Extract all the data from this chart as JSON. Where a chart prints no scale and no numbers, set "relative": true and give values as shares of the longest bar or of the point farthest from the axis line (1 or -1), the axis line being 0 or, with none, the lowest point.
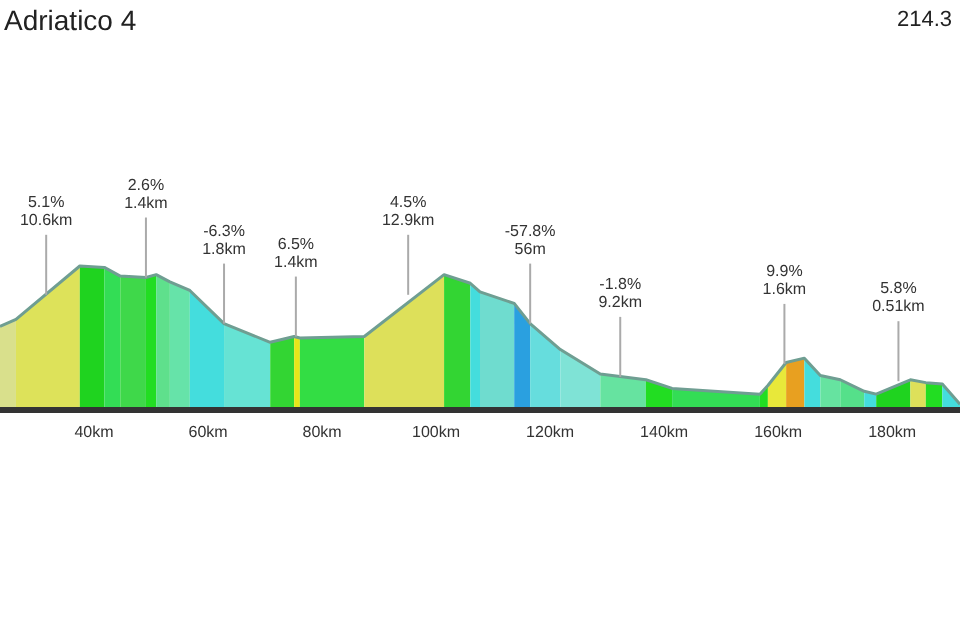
{
  "chart_data": {
    "type": "area",
    "title": "Adriatico 4",
    "subtitle": "214.3",
    "relative": true,
    "series": [
      {
        "x": [
          23.5,
          26.3
        ],
        "values": [
          0.58,
          0.63
        ],
        "color": "#d9e08c"
      },
      {
        "x": [
          26.3,
          37.5
        ],
        "values": [
          0.63,
          1
        ],
        "color": "#dde25a"
      },
      {
        "x": [
          37.5,
          41.8
        ],
        "values": [
          1,
          0.99
        ],
        "color": "#1fd31f"
      },
      {
        "x": [
          41.8,
          44.6
        ],
        "values": [
          0.99,
          0.93
        ],
        "color": "#33dd55"
      },
      {
        "x": [
          44.6,
          49.1
        ],
        "values": [
          0.93,
          0.92
        ],
        "color": "#3fd84a"
      },
      {
        "x": [
          49.1,
          50.9
        ],
        "values": [
          0.92,
          0.94
        ],
        "color": "#22dd22"
      },
      {
        "x": [
          50.9,
          53.3
        ],
        "values": [
          0.94,
          0.89
        ],
        "color": "#5fe08c"
      },
      {
        "x": [
          53.3,
          56.8
        ],
        "values": [
          0.89,
          0.83
        ],
        "color": "#66e3a9"
      },
      {
        "x": [
          56.8,
          62.8
        ],
        "values": [
          0.83,
          0.6
        ],
        "color": "#44dddd"
      },
      {
        "x": [
          62.8,
          70.9
        ],
        "values": [
          0.6,
          0.47
        ],
        "color": "#66e3d4"
      },
      {
        "x": [
          70.9,
          75.1
        ],
        "values": [
          0.47,
          0.51
        ],
        "color": "#33d533"
      },
      {
        "x": [
          75.1,
          76.1
        ],
        "values": [
          0.51,
          0.5
        ],
        "color": "#e6e61a"
      },
      {
        "x": [
          76.1,
          87.4
        ],
        "values": [
          0.5,
          0.51
        ],
        "color": "#33dd44"
      },
      {
        "x": [
          87.4,
          101.4
        ],
        "values": [
          0.51,
          0.94
        ],
        "color": "#dde05a"
      },
      {
        "x": [
          101.4,
          106.0
        ],
        "values": [
          0.94,
          0.88
        ],
        "color": "#33d533"
      },
      {
        "x": [
          106.0,
          107.7
        ],
        "values": [
          0.88,
          0.82
        ],
        "color": "#44dddd"
      },
      {
        "x": [
          107.7,
          113.7
        ],
        "values": [
          0.82,
          0.74
        ],
        "color": "#6fdccf"
      },
      {
        "x": [
          113.7,
          116.5
        ],
        "values": [
          0.74,
          0.6
        ],
        "color": "#2aa0e0"
      },
      {
        "x": [
          116.5,
          121.8
        ],
        "values": [
          0.6,
          0.42
        ],
        "color": "#66dddd"
      },
      {
        "x": [
          121.8,
          128.8
        ],
        "values": [
          0.42,
          0.25
        ],
        "color": "#7fe3d6"
      },
      {
        "x": [
          128.8,
          136.8
        ],
        "values": [
          0.25,
          0.21
        ],
        "color": "#66e3a0"
      },
      {
        "x": [
          136.8,
          141.4
        ],
        "values": [
          0.21,
          0.15
        ],
        "color": "#22dd22"
      },
      {
        "x": [
          141.4,
          156.8
        ],
        "values": [
          0.15,
          0.11
        ],
        "color": "#33dd55"
      },
      {
        "x": [
          156.8,
          158.2
        ],
        "values": [
          0.11,
          0.17
        ],
        "color": "#22dd22"
      },
      {
        "x": [
          158.2,
          161.4
        ],
        "values": [
          0.17,
          0.33
        ],
        "color": "#e8e83a"
      },
      {
        "x": [
          161.4,
          164.6
        ],
        "values": [
          0.33,
          0.36
        ],
        "color": "#e8a020"
      },
      {
        "x": [
          164.6,
          167.4
        ],
        "values": [
          0.36,
          0.24
        ],
        "color": "#44dddd"
      },
      {
        "x": [
          167.4,
          170.9
        ],
        "values": [
          0.24,
          0.21
        ],
        "color": "#66e3a0"
      },
      {
        "x": [
          170.9,
          175.1
        ],
        "values": [
          0.21,
          0.13
        ],
        "color": "#55e08a"
      },
      {
        "x": [
          175.1,
          177.2
        ],
        "values": [
          0.13,
          0.11
        ],
        "color": "#44dddd"
      },
      {
        "x": [
          177.2,
          183.2
        ],
        "values": [
          0.11,
          0.21
        ],
        "color": "#1fd31f"
      },
      {
        "x": [
          183.2,
          185.9
        ],
        "values": [
          0.21,
          0.19
        ],
        "color": "#dde05a"
      },
      {
        "x": [
          185.9,
          188.8
        ],
        "values": [
          0.19,
          0.18
        ],
        "color": "#22dd22"
      },
      {
        "x": [
          188.8,
          191.9
        ],
        "values": [
          0.18,
          0.04
        ],
        "color": "#44dddd"
      },
      {
        "type": "line",
        "color": "#6f9e92",
        "x": [
          23.5,
          26.3,
          37.5,
          41.8,
          44.6,
          49.1,
          50.9,
          53.3,
          56.8,
          62.8,
          70.9,
          75.1,
          76.1,
          87.4,
          101.4,
          106.0,
          107.7,
          113.7,
          116.5,
          121.8,
          128.8,
          136.8,
          141.4,
          156.8,
          158.2,
          161.4,
          164.6,
          167.4,
          170.9,
          175.1,
          177.2,
          183.2,
          185.9,
          188.8,
          191.9
        ],
        "values": [
          0.58,
          0.63,
          1,
          0.99,
          0.93,
          0.92,
          0.94,
          0.89,
          0.83,
          0.6,
          0.47,
          0.51,
          0.5,
          0.51,
          0.94,
          0.88,
          0.82,
          0.74,
          0.6,
          0.42,
          0.25,
          0.21,
          0.15,
          0.11,
          0.17,
          0.33,
          0.36,
          0.24,
          0.21,
          0.13,
          0.11,
          0.21,
          0.19,
          0.18,
          0.04
        ]
      }
    ],
    "xlim": [
      23.5,
      191.9
    ],
    "xticks": [
      {
        "value": 40,
        "label": "40km"
      },
      {
        "value": 60,
        "label": "60km"
      },
      {
        "value": 80,
        "label": "80km"
      },
      {
        "value": 100,
        "label": "100km"
      },
      {
        "value": 120,
        "label": "120km"
      },
      {
        "value": 140,
        "label": "140km"
      },
      {
        "value": 160,
        "label": "160km"
      },
      {
        "value": 180,
        "label": "180km"
      }
    ],
    "tick_labels": "x",
    "grid": false,
    "legend": false,
    "annotations": [
      {
        "text": "5.1%\n10.6km",
        "x": 31.6,
        "y": 0.8
      },
      {
        "text": "2.6%\n1.4km",
        "x": 49.1,
        "y": 0.92
      },
      {
        "text": "-6.3%\n1.8km",
        "x": 62.8,
        "y": 0.6
      },
      {
        "text": "6.5%\n1.4km",
        "x": 75.4,
        "y": 0.51
      },
      {
        "text": "4.5%\n12.9km",
        "x": 95.1,
        "y": 0.8
      },
      {
        "text": "-57.8%\n56m",
        "x": 116.5,
        "y": 0.6
      },
      {
        "text": "-1.8%\n9.2km",
        "x": 132.3,
        "y": 0.23
      },
      {
        "text": "9.9%\n1.6km",
        "x": 161.1,
        "y": 0.32
      },
      {
        "text": "5.8%\n0.51km",
        "x": 181.1,
        "y": 0.2
      }
    ]
  }
}
